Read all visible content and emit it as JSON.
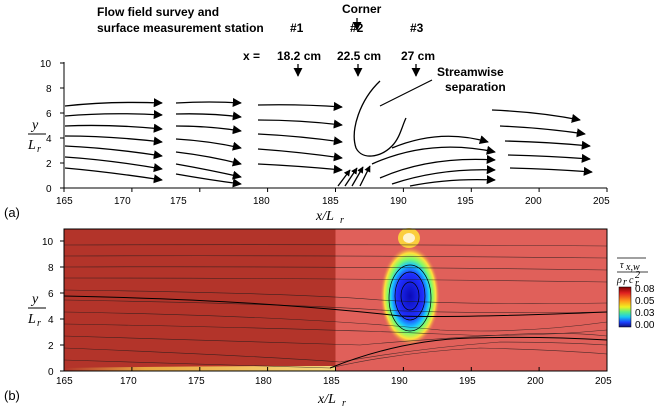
{
  "annotations": {
    "survey_line1": "Flow field survey and",
    "survey_line2": "surface measurement station",
    "corner": "Corner",
    "stations": [
      "#1",
      "#2",
      "#3"
    ],
    "x_prefix": "x =",
    "x_values": [
      "18.2 cm",
      "22.5 cm",
      "27 cm"
    ],
    "separation_line1": "Streamwise",
    "separation_line2": "separation"
  },
  "panel_a": {
    "label": "(a)",
    "ylabel_num": "y",
    "ylabel_den": "L",
    "ylabel_sub": "r",
    "xlabel_main": "x/L",
    "xlabel_sub": "r",
    "x_ticks": [
      "165",
      "170",
      "175",
      "180",
      "185",
      "190",
      "195",
      "200",
      "205"
    ],
    "y_ticks": [
      "0",
      "2",
      "4",
      "6",
      "8",
      "10"
    ]
  },
  "panel_b": {
    "label": "(b)",
    "ylabel_num": "y",
    "ylabel_den": "L",
    "ylabel_sub": "r",
    "xlabel_main": "x/L",
    "xlabel_sub": "r",
    "x_ticks": [
      "165",
      "170",
      "175",
      "180",
      "185",
      "190",
      "195",
      "200",
      "205"
    ],
    "y_ticks": [
      "0",
      "2",
      "4",
      "6",
      "8",
      "10"
    ]
  },
  "colorbar": {
    "title_num": "τ",
    "title_num_sub": "x,w",
    "title_den": "ρ",
    "title_den_sub": "r",
    "title_den_var": "c",
    "title_den_sup": "2",
    "title_den_var_sub": "r",
    "ticks": [
      "0.08",
      "0.05",
      "0.03",
      "0.00"
    ]
  },
  "colors": {
    "left_field": "#b3342a",
    "right_field": "#e0605a",
    "low_shear": "#1c1ce0",
    "streamline": "#000000"
  }
}
